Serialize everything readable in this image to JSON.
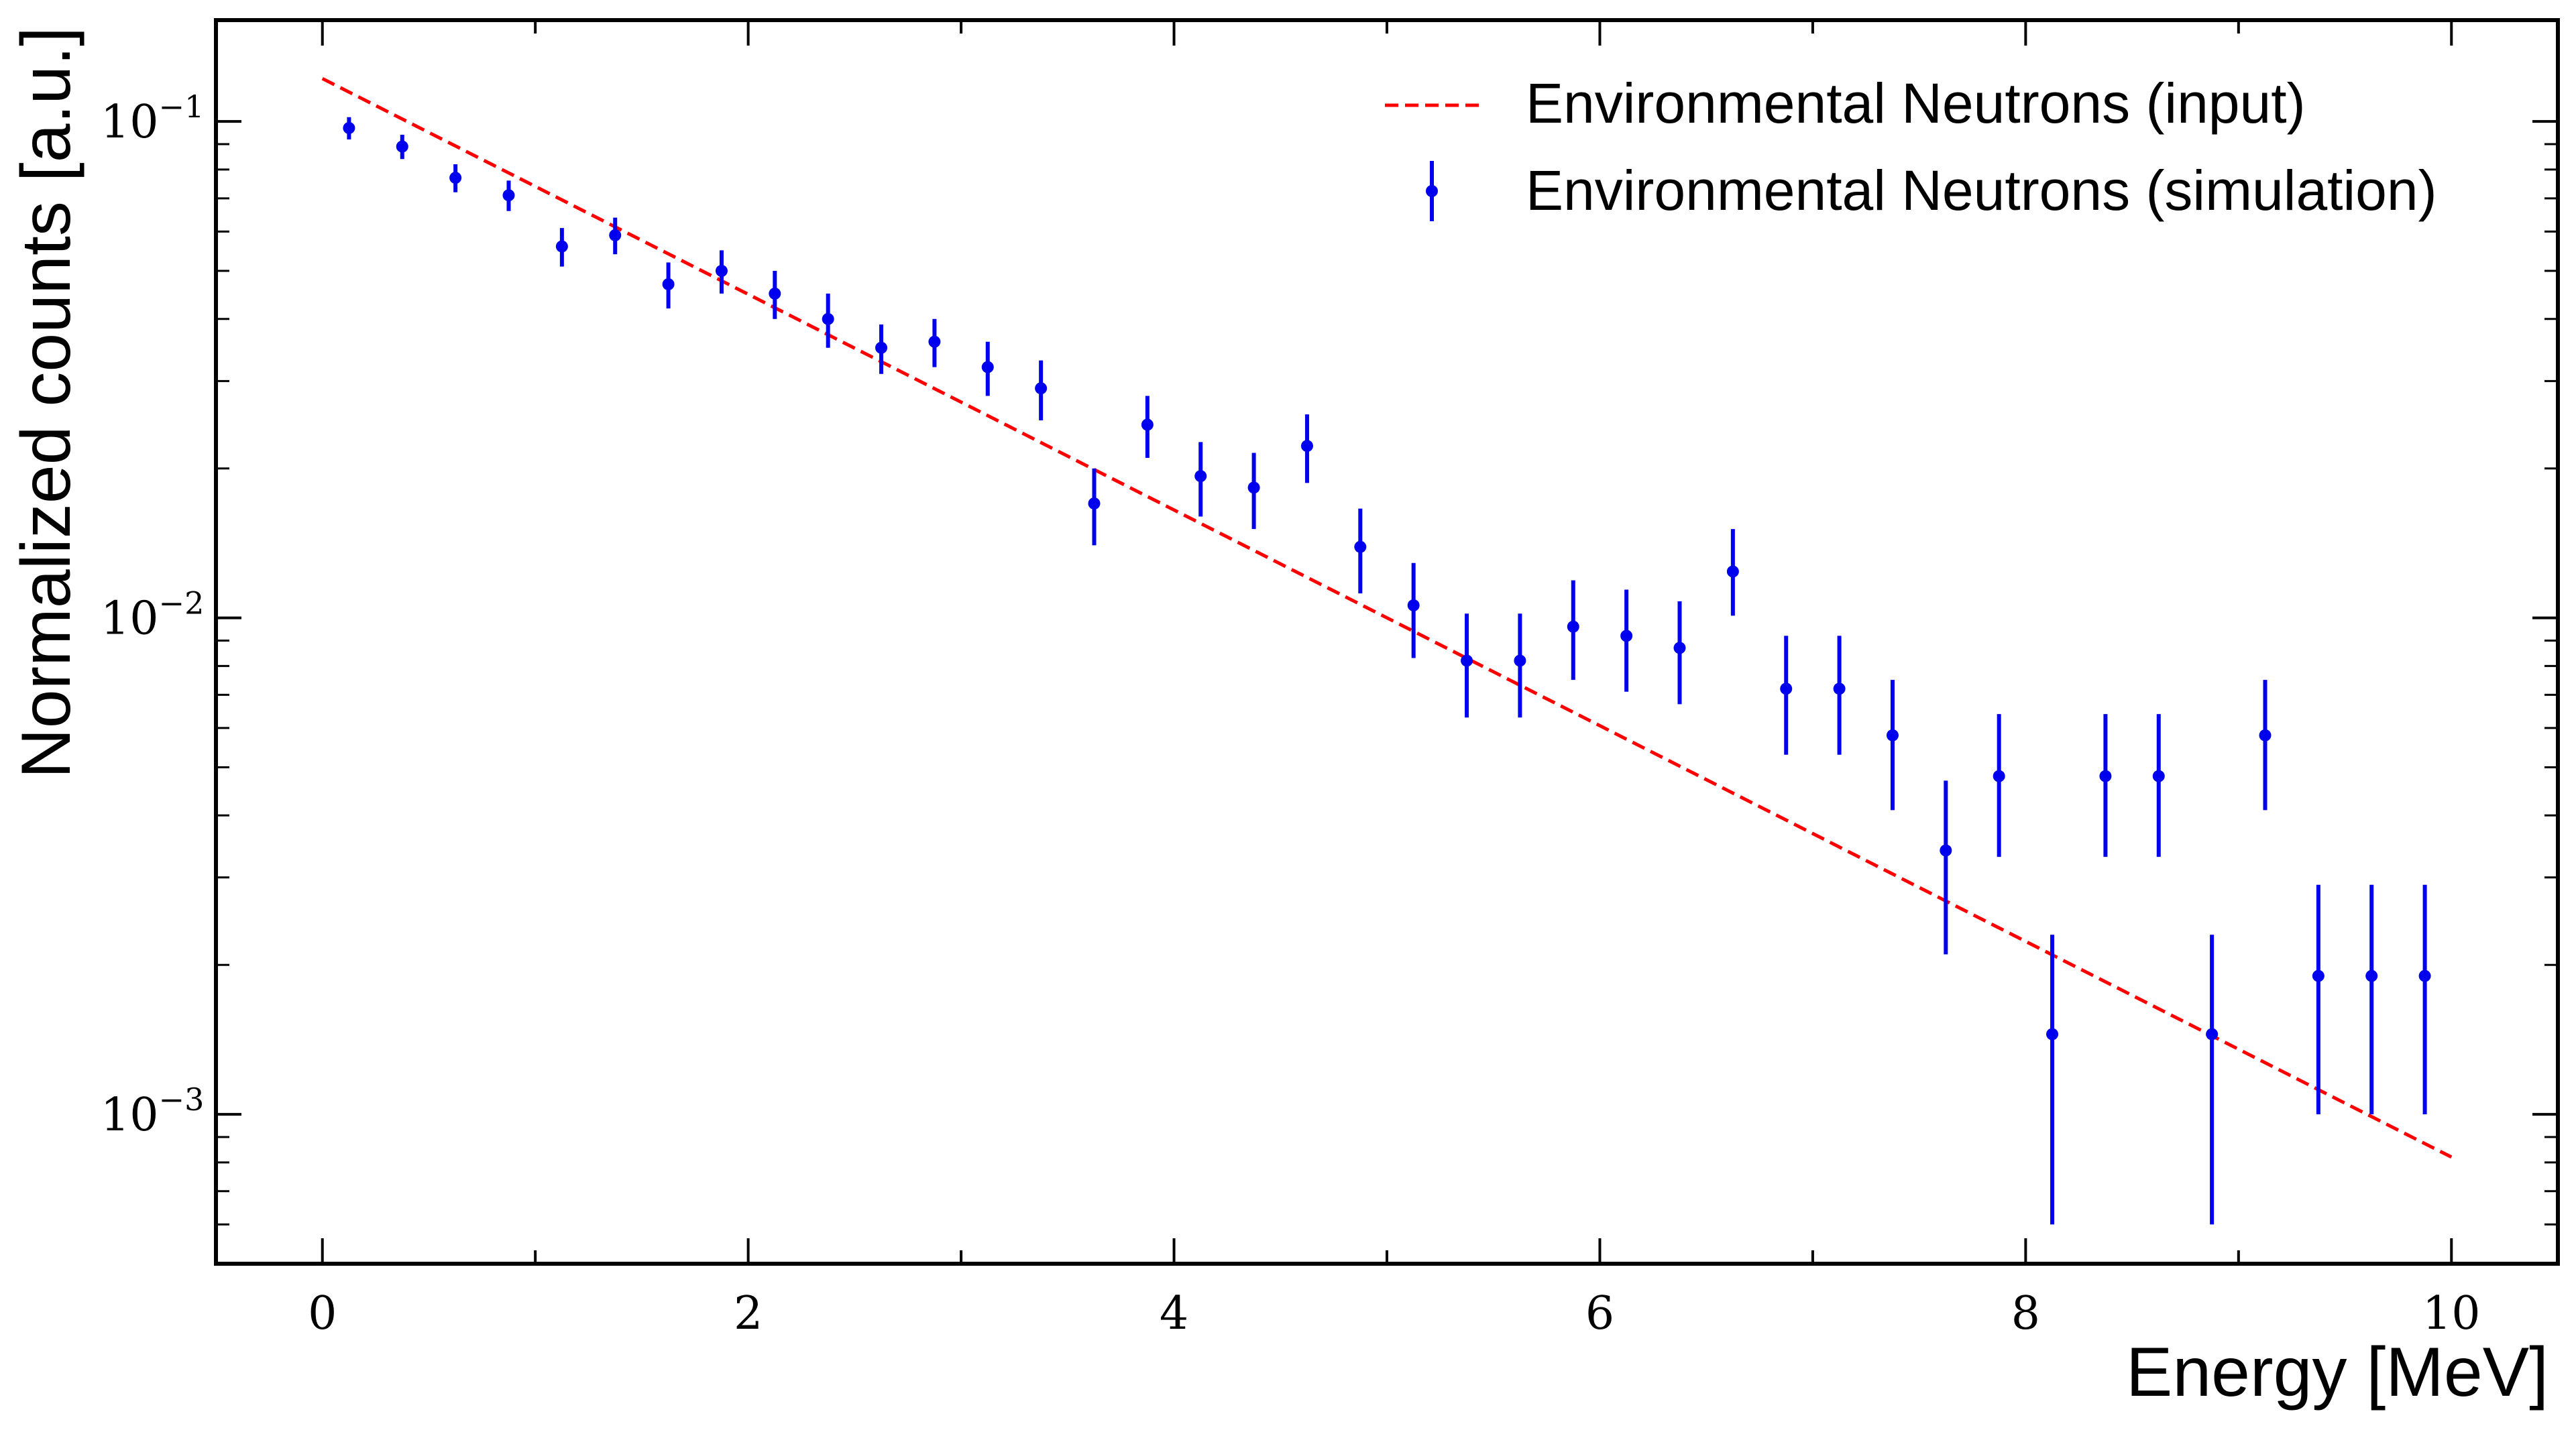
{
  "chart_data": {
    "type": "scatter",
    "xlabel": "Energy [MeV]",
    "ylabel": "Normalized counts [a.u.]",
    "xlim": [
      -0.5,
      10.5
    ],
    "ylim": [
      0.0005,
      0.16
    ],
    "yscale": "log",
    "grid": false,
    "legend_position": "top-right",
    "x_ticks": [
      "0",
      "2",
      "4",
      "6",
      "8",
      "10"
    ],
    "y_ticks": [
      {
        "base": "10",
        "exp": "−1"
      },
      {
        "base": "10",
        "exp": "−2"
      },
      {
        "base": "10",
        "exp": "−3"
      }
    ],
    "series": [
      {
        "name": "Environmental Neutrons (input)",
        "style": "dashed-line",
        "color": "#ff0000",
        "x": [
          0.0,
          10.0
        ],
        "y": [
          0.122,
          0.00082
        ]
      },
      {
        "name": "Environmental Neutrons (simulation)",
        "style": "errorbar-points",
        "color": "#0000ee",
        "x": [
          0.125,
          0.375,
          0.625,
          0.875,
          1.125,
          1.375,
          1.625,
          1.875,
          2.125,
          2.375,
          2.625,
          2.875,
          3.125,
          3.375,
          3.625,
          3.875,
          4.125,
          4.375,
          4.625,
          4.875,
          5.125,
          5.375,
          5.625,
          5.875,
          6.125,
          6.375,
          6.625,
          6.875,
          7.125,
          7.375,
          7.625,
          7.875,
          8.125,
          8.375,
          8.625,
          8.875,
          9.125,
          9.375,
          9.625,
          9.875
        ],
        "y": [
          0.097,
          0.089,
          0.077,
          0.071,
          0.056,
          0.059,
          0.047,
          0.05,
          0.045,
          0.04,
          0.035,
          0.036,
          0.032,
          0.029,
          0.017,
          0.0245,
          0.0193,
          0.0183,
          0.0222,
          0.0139,
          0.0106,
          0.0082,
          0.0082,
          0.0096,
          0.0092,
          0.0087,
          0.0124,
          0.0072,
          0.0072,
          0.0058,
          0.0034,
          0.0048,
          0.00145,
          0.0048,
          0.0048,
          0.00145,
          0.0058,
          0.0019,
          0.0019,
          0.0019
        ],
        "yerr_low": [
          0.005,
          0.005,
          0.005,
          0.005,
          0.005,
          0.005,
          0.005,
          0.005,
          0.005,
          0.005,
          0.004,
          0.004,
          0.004,
          0.004,
          0.003,
          0.0035,
          0.0033,
          0.0032,
          0.0035,
          0.0027,
          0.0023,
          0.0019,
          0.0019,
          0.0021,
          0.0021,
          0.002,
          0.0023,
          0.0019,
          0.0019,
          0.0017,
          0.0013,
          0.0015,
          0.00085,
          0.0015,
          0.0015,
          0.00085,
          0.0017,
          0.0009,
          0.0009,
          0.0009
        ],
        "yerr_high": [
          0.005,
          0.005,
          0.005,
          0.005,
          0.005,
          0.005,
          0.005,
          0.005,
          0.005,
          0.005,
          0.004,
          0.004,
          0.004,
          0.004,
          0.003,
          0.0035,
          0.0033,
          0.0032,
          0.0035,
          0.0027,
          0.0023,
          0.002,
          0.002,
          0.0023,
          0.0022,
          0.0021,
          0.0027,
          0.002,
          0.002,
          0.0017,
          0.0013,
          0.0016,
          0.00085,
          0.0016,
          0.0016,
          0.00085,
          0.0017,
          0.001,
          0.001,
          0.001
        ]
      }
    ]
  }
}
